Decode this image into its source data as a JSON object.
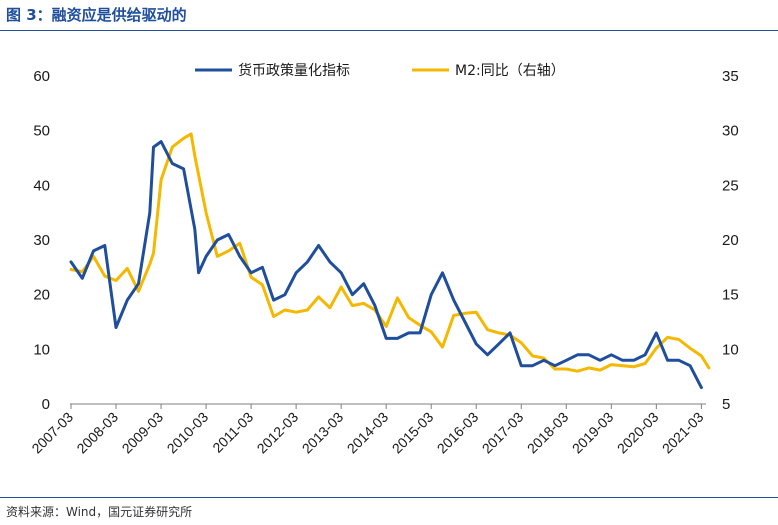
{
  "header": {
    "title": "图 3：融资应是供给驱动的"
  },
  "footer": {
    "source": "资料来源：Wind，国元证券研究所"
  },
  "chart_data": {
    "type": "line",
    "title": "",
    "xlabel": "",
    "ylabel_left": "",
    "ylabel_right": "",
    "left_axis": {
      "ylim": [
        0,
        60
      ],
      "ticks": [
        "0",
        "10",
        "20",
        "30",
        "40",
        "50",
        "60"
      ]
    },
    "right_axis": {
      "ylim": [
        5,
        35
      ],
      "ticks": [
        "5",
        "10",
        "15",
        "20",
        "25",
        "30",
        "35"
      ]
    },
    "x_ticks": [
      "2007-03",
      "2008-03",
      "2009-03",
      "2010-03",
      "2011-03",
      "2012-03",
      "2013-03",
      "2014-03",
      "2015-03",
      "2016-03",
      "2017-03",
      "2018-03",
      "2019-03",
      "2020-03",
      "2021-03"
    ],
    "grid": false,
    "legend_position": "top-center",
    "series": [
      {
        "name": "货币政策量化指标",
        "axis": "left",
        "color": "#1f4e9c",
        "points": [
          [
            "2007-03",
            26
          ],
          [
            "2007-06",
            23
          ],
          [
            "2007-09",
            28
          ],
          [
            "2007-12",
            29
          ],
          [
            "2008-03",
            14
          ],
          [
            "2008-06",
            19
          ],
          [
            "2008-09",
            22
          ],
          [
            "2008-12",
            35
          ],
          [
            "2009-01",
            47
          ],
          [
            "2009-03",
            48
          ],
          [
            "2009-06",
            44
          ],
          [
            "2009-09",
            43
          ],
          [
            "2009-12",
            32
          ],
          [
            "2010-01",
            24
          ],
          [
            "2010-03",
            27
          ],
          [
            "2010-06",
            30
          ],
          [
            "2010-09",
            31
          ],
          [
            "2010-12",
            27
          ],
          [
            "2011-03",
            24
          ],
          [
            "2011-06",
            25
          ],
          [
            "2011-09",
            19
          ],
          [
            "2011-12",
            20
          ],
          [
            "2012-03",
            24
          ],
          [
            "2012-06",
            26
          ],
          [
            "2012-09",
            29
          ],
          [
            "2012-12",
            26
          ],
          [
            "2013-03",
            24
          ],
          [
            "2013-06",
            20
          ],
          [
            "2013-09",
            22
          ],
          [
            "2013-12",
            18
          ],
          [
            "2014-03",
            12
          ],
          [
            "2014-06",
            12
          ],
          [
            "2014-09",
            13
          ],
          [
            "2014-12",
            13
          ],
          [
            "2015-03",
            20
          ],
          [
            "2015-06",
            24
          ],
          [
            "2015-09",
            19
          ],
          [
            "2015-12",
            15
          ],
          [
            "2016-03",
            11
          ],
          [
            "2016-06",
            9
          ],
          [
            "2016-09",
            11
          ],
          [
            "2016-12",
            13
          ],
          [
            "2017-03",
            7
          ],
          [
            "2017-06",
            7
          ],
          [
            "2017-09",
            8
          ],
          [
            "2017-12",
            7
          ],
          [
            "2018-03",
            8
          ],
          [
            "2018-06",
            9
          ],
          [
            "2018-09",
            9
          ],
          [
            "2018-12",
            8
          ],
          [
            "2019-03",
            9
          ],
          [
            "2019-06",
            8
          ],
          [
            "2019-09",
            8
          ],
          [
            "2019-12",
            9
          ],
          [
            "2020-03",
            13
          ],
          [
            "2020-06",
            8
          ],
          [
            "2020-09",
            8
          ],
          [
            "2020-12",
            7
          ],
          [
            "2021-03",
            3
          ]
        ]
      },
      {
        "name": "M2:同比（右轴）",
        "axis": "right",
        "color": "#f5b800",
        "points": [
          [
            "2007-03",
            17.3
          ],
          [
            "2007-06",
            17.1
          ],
          [
            "2007-09",
            18.5
          ],
          [
            "2007-12",
            16.7
          ],
          [
            "2008-03",
            16.3
          ],
          [
            "2008-06",
            17.4
          ],
          [
            "2008-09",
            15.3
          ],
          [
            "2008-12",
            17.8
          ],
          [
            "2009-01",
            18.8
          ],
          [
            "2009-03",
            25.5
          ],
          [
            "2009-06",
            28.5
          ],
          [
            "2009-09",
            29.3
          ],
          [
            "2009-11",
            29.7
          ],
          [
            "2009-12",
            27.7
          ],
          [
            "2010-03",
            22.5
          ],
          [
            "2010-06",
            18.5
          ],
          [
            "2010-09",
            19.0
          ],
          [
            "2010-12",
            19.7
          ],
          [
            "2011-03",
            16.6
          ],
          [
            "2011-06",
            15.9
          ],
          [
            "2011-09",
            13.0
          ],
          [
            "2011-12",
            13.6
          ],
          [
            "2012-03",
            13.4
          ],
          [
            "2012-06",
            13.6
          ],
          [
            "2012-09",
            14.8
          ],
          [
            "2012-12",
            13.8
          ],
          [
            "2013-03",
            15.7
          ],
          [
            "2013-06",
            14.0
          ],
          [
            "2013-09",
            14.2
          ],
          [
            "2013-12",
            13.6
          ],
          [
            "2014-03",
            12.1
          ],
          [
            "2014-06",
            14.7
          ],
          [
            "2014-09",
            12.9
          ],
          [
            "2014-12",
            12.2
          ],
          [
            "2015-03",
            11.6
          ],
          [
            "2015-06",
            10.2
          ],
          [
            "2015-09",
            13.1
          ],
          [
            "2015-12",
            13.3
          ],
          [
            "2016-03",
            13.4
          ],
          [
            "2016-06",
            11.8
          ],
          [
            "2016-09",
            11.5
          ],
          [
            "2016-12",
            11.3
          ],
          [
            "2017-03",
            10.6
          ],
          [
            "2017-06",
            9.4
          ],
          [
            "2017-09",
            9.2
          ],
          [
            "2017-12",
            8.2
          ],
          [
            "2018-03",
            8.2
          ],
          [
            "2018-06",
            8.0
          ],
          [
            "2018-09",
            8.3
          ],
          [
            "2018-12",
            8.1
          ],
          [
            "2019-03",
            8.6
          ],
          [
            "2019-06",
            8.5
          ],
          [
            "2019-09",
            8.4
          ],
          [
            "2019-12",
            8.7
          ],
          [
            "2020-03",
            10.1
          ],
          [
            "2020-06",
            11.1
          ],
          [
            "2020-09",
            10.9
          ],
          [
            "2020-12",
            10.1
          ],
          [
            "2021-03",
            9.4
          ],
          [
            "2021-05",
            8.3
          ]
        ]
      }
    ]
  }
}
